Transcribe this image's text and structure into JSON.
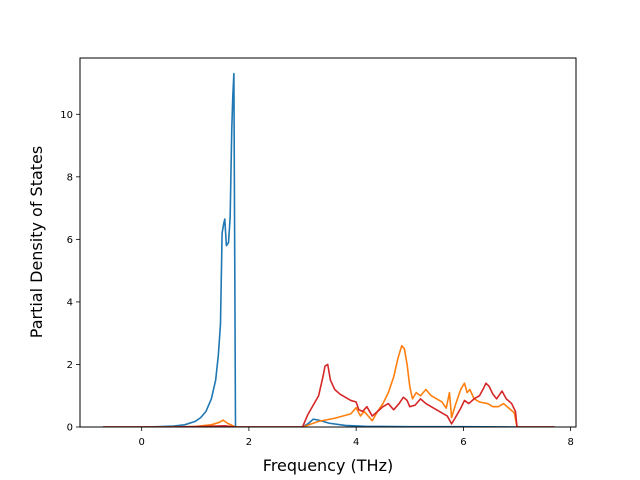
{
  "chart_data": {
    "type": "line",
    "title": "",
    "xlabel": "Frequency (THz)",
    "ylabel": "Partial Density of States",
    "xlim": [
      -1.15,
      8.1
    ],
    "ylim": [
      0,
      11.8
    ],
    "xticks": [
      0,
      2,
      4,
      6,
      8
    ],
    "yticks": [
      0,
      2,
      4,
      6,
      8,
      10
    ],
    "xtick_labels": [
      "0",
      "2",
      "4",
      "6",
      "8"
    ],
    "ytick_labels": [
      "0",
      "2",
      "4",
      "6",
      "8",
      "10"
    ],
    "grid": false,
    "legend": "none",
    "series": [
      {
        "color": "#1f77b4",
        "points": [
          [
            -0.72,
            0.0
          ],
          [
            0.0,
            0.0
          ],
          [
            0.3,
            0.01
          ],
          [
            0.6,
            0.03
          ],
          [
            0.8,
            0.07
          ],
          [
            1.0,
            0.18
          ],
          [
            1.1,
            0.3
          ],
          [
            1.2,
            0.5
          ],
          [
            1.3,
            0.9
          ],
          [
            1.38,
            1.5
          ],
          [
            1.43,
            2.3
          ],
          [
            1.47,
            3.3
          ],
          [
            1.5,
            6.2
          ],
          [
            1.53,
            6.5
          ],
          [
            1.55,
            6.65
          ],
          [
            1.58,
            5.8
          ],
          [
            1.62,
            5.9
          ],
          [
            1.65,
            6.7
          ],
          [
            1.68,
            9.5
          ],
          [
            1.7,
            10.6
          ],
          [
            1.72,
            11.3
          ],
          [
            1.75,
            0.0
          ],
          [
            3.0,
            0.0
          ],
          [
            3.1,
            0.1
          ],
          [
            3.2,
            0.25
          ],
          [
            3.3,
            0.22
          ],
          [
            3.5,
            0.12
          ],
          [
            3.8,
            0.05
          ],
          [
            4.2,
            0.02
          ],
          [
            5.0,
            0.01
          ],
          [
            6.0,
            0.01
          ],
          [
            7.0,
            0.0
          ],
          [
            7.7,
            0.0
          ]
        ]
      },
      {
        "color": "#ff7f0e",
        "points": [
          [
            -0.72,
            0.0
          ],
          [
            0.5,
            0.0
          ],
          [
            1.0,
            0.02
          ],
          [
            1.3,
            0.07
          ],
          [
            1.45,
            0.15
          ],
          [
            1.52,
            0.22
          ],
          [
            1.6,
            0.12
          ],
          [
            1.75,
            0.0
          ],
          [
            3.0,
            0.0
          ],
          [
            3.3,
            0.18
          ],
          [
            3.6,
            0.28
          ],
          [
            3.9,
            0.42
          ],
          [
            4.0,
            0.62
          ],
          [
            4.08,
            0.35
          ],
          [
            4.15,
            0.5
          ],
          [
            4.2,
            0.4
          ],
          [
            4.3,
            0.2
          ],
          [
            4.4,
            0.5
          ],
          [
            4.5,
            0.75
          ],
          [
            4.6,
            1.1
          ],
          [
            4.7,
            1.6
          ],
          [
            4.78,
            2.2
          ],
          [
            4.85,
            2.6
          ],
          [
            4.9,
            2.5
          ],
          [
            4.95,
            2.0
          ],
          [
            5.0,
            1.3
          ],
          [
            5.05,
            0.9
          ],
          [
            5.12,
            1.1
          ],
          [
            5.2,
            1.0
          ],
          [
            5.3,
            1.2
          ],
          [
            5.4,
            1.0
          ],
          [
            5.5,
            0.9
          ],
          [
            5.6,
            0.8
          ],
          [
            5.68,
            0.6
          ],
          [
            5.74,
            1.1
          ],
          [
            5.78,
            0.3
          ],
          [
            5.85,
            0.7
          ],
          [
            5.95,
            1.2
          ],
          [
            6.02,
            1.4
          ],
          [
            6.07,
            1.1
          ],
          [
            6.12,
            1.2
          ],
          [
            6.2,
            0.9
          ],
          [
            6.3,
            0.8
          ],
          [
            6.45,
            0.75
          ],
          [
            6.55,
            0.65
          ],
          [
            6.65,
            0.65
          ],
          [
            6.75,
            0.75
          ],
          [
            6.85,
            0.6
          ],
          [
            6.95,
            0.45
          ],
          [
            7.0,
            0.0
          ],
          [
            7.7,
            0.0
          ]
        ]
      },
      {
        "color": "#d62728",
        "points": [
          [
            -0.72,
            0.0
          ],
          [
            0.5,
            0.0
          ],
          [
            1.0,
            0.01
          ],
          [
            1.4,
            0.03
          ],
          [
            1.55,
            0.04
          ],
          [
            1.75,
            0.0
          ],
          [
            3.0,
            0.0
          ],
          [
            3.1,
            0.4
          ],
          [
            3.2,
            0.7
          ],
          [
            3.3,
            1.0
          ],
          [
            3.38,
            1.6
          ],
          [
            3.42,
            1.95
          ],
          [
            3.47,
            2.0
          ],
          [
            3.52,
            1.5
          ],
          [
            3.6,
            1.2
          ],
          [
            3.7,
            1.05
          ],
          [
            3.8,
            0.95
          ],
          [
            3.9,
            0.85
          ],
          [
            4.0,
            0.8
          ],
          [
            4.05,
            0.55
          ],
          [
            4.12,
            0.5
          ],
          [
            4.2,
            0.65
          ],
          [
            4.3,
            0.35
          ],
          [
            4.4,
            0.5
          ],
          [
            4.5,
            0.65
          ],
          [
            4.6,
            0.75
          ],
          [
            4.7,
            0.55
          ],
          [
            4.8,
            0.75
          ],
          [
            4.88,
            0.95
          ],
          [
            4.95,
            0.85
          ],
          [
            5.0,
            0.65
          ],
          [
            5.1,
            0.7
          ],
          [
            5.2,
            0.9
          ],
          [
            5.3,
            0.75
          ],
          [
            5.4,
            0.65
          ],
          [
            5.5,
            0.55
          ],
          [
            5.6,
            0.45
          ],
          [
            5.7,
            0.35
          ],
          [
            5.78,
            0.1
          ],
          [
            5.85,
            0.3
          ],
          [
            5.95,
            0.6
          ],
          [
            6.02,
            0.85
          ],
          [
            6.1,
            0.75
          ],
          [
            6.2,
            0.9
          ],
          [
            6.3,
            1.0
          ],
          [
            6.38,
            1.25
          ],
          [
            6.42,
            1.4
          ],
          [
            6.48,
            1.3
          ],
          [
            6.55,
            1.05
          ],
          [
            6.62,
            0.9
          ],
          [
            6.72,
            1.15
          ],
          [
            6.8,
            0.9
          ],
          [
            6.9,
            0.75
          ],
          [
            6.97,
            0.5
          ],
          [
            7.0,
            0.0
          ],
          [
            7.7,
            0.0
          ]
        ]
      }
    ]
  }
}
